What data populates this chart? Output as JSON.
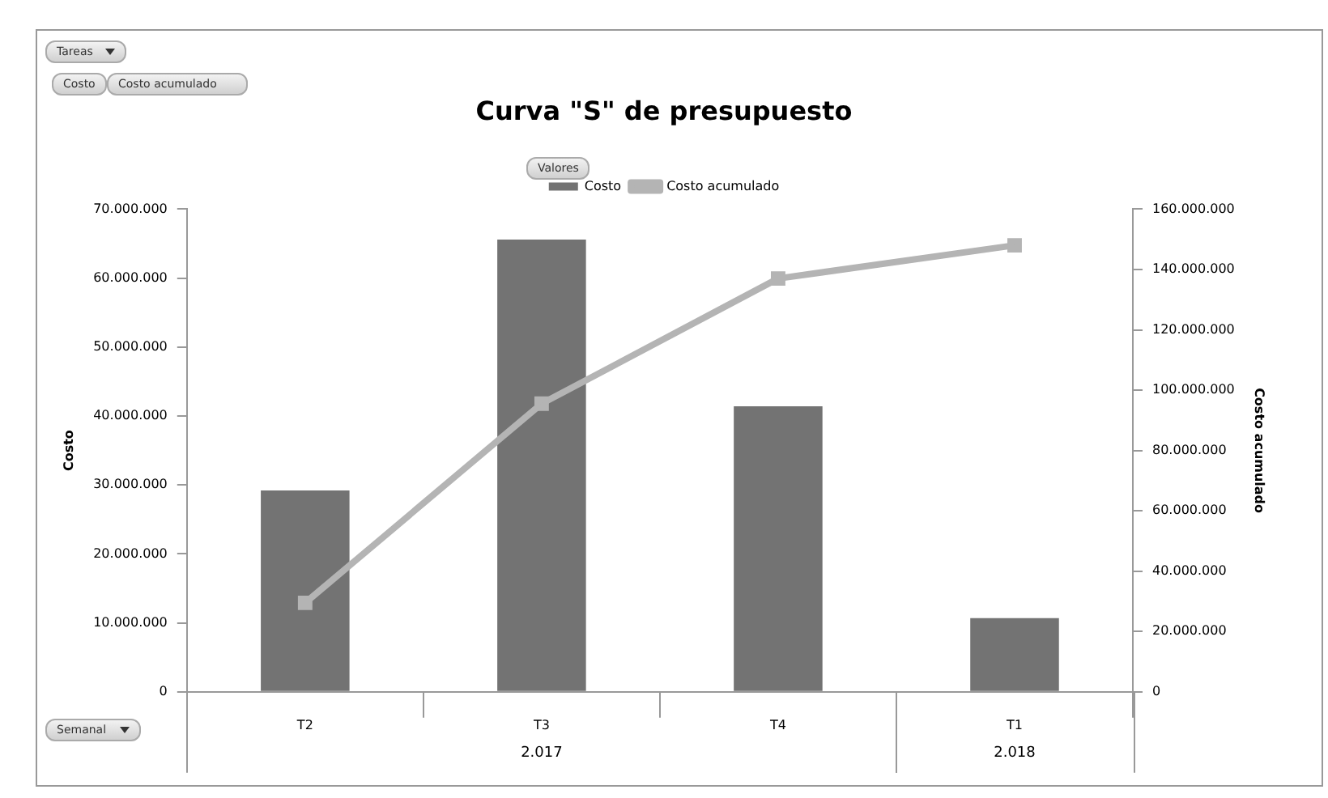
{
  "chart_data": {
    "type": "bar",
    "title": "Curva \"S\" de presupuesto",
    "ylabel": "Costo",
    "y2label": "Costo acumulado",
    "categories": [
      "T2",
      "T3",
      "T4",
      "T1"
    ],
    "series": [
      {
        "name": "Costo",
        "color": "#737373",
        "values": [
          29200000,
          65600000,
          41400000,
          10700000
        ]
      },
      {
        "name": "Costo acumulado",
        "type": "line",
        "axis": "y2",
        "color": "#b4b4b4",
        "marker": "square",
        "values": [
          29500000,
          95500000,
          137000000,
          148000000
        ]
      }
    ],
    "ylim": [
      0,
      70000000
    ],
    "yticks": [
      {
        "value": 0,
        "label": "0"
      },
      {
        "value": 10000000,
        "label": "10.000.000"
      },
      {
        "value": 20000000,
        "label": "20.000.000"
      },
      {
        "value": 30000000,
        "label": "30.000.000"
      },
      {
        "value": 40000000,
        "label": "40.000.000"
      },
      {
        "value": 50000000,
        "label": "50.000.000"
      },
      {
        "value": 60000000,
        "label": "60.000.000"
      },
      {
        "value": 70000000,
        "label": "70.000.000"
      }
    ],
    "y2lim": [
      0,
      160000000
    ],
    "y2ticks": [
      {
        "value": 0,
        "label": "0"
      },
      {
        "value": 20000000,
        "label": "20.000.000"
      },
      {
        "value": 40000000,
        "label": "40.000.000"
      },
      {
        "value": 60000000,
        "label": "60.000.000"
      },
      {
        "value": 80000000,
        "label": "80.000.000"
      },
      {
        "value": 100000000,
        "label": "100.000.000"
      },
      {
        "value": 120000000,
        "label": "120.000.000"
      },
      {
        "value": 140000000,
        "label": "140.000.000"
      },
      {
        "value": 160000000,
        "label": "160.000.000"
      }
    ],
    "annotations": [
      "2.017",
      "2.018",
      "Tareas",
      "Costo",
      "Costo acumulado",
      "Valores",
      "Semanal"
    ],
    "legend": "top",
    "grid": false
  }
}
